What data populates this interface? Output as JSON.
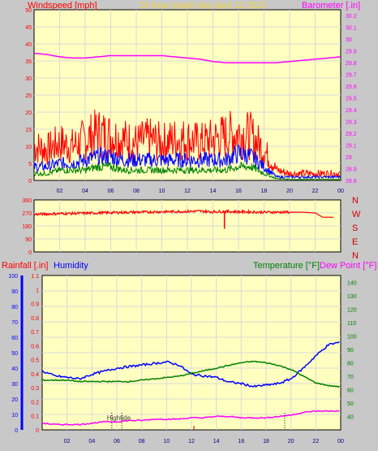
{
  "title": "24 hour graph day   April 12 2023",
  "colors": {
    "background": "#c8c8c8",
    "plot_bg": "#ffffc0",
    "grid": "#d9d9d9",
    "red": "#ff0000",
    "blue": "#0000ff",
    "green": "#008000",
    "magenta": "#ff00ff",
    "title": "#f0d040",
    "dark_red": "#cc0000"
  },
  "chart_data": [
    {
      "type": "line",
      "name": "wind-barometer",
      "left_label": "Windspeed [mph]",
      "right_label": "Barometer [.in]",
      "y_left": {
        "range": [
          0,
          50
        ],
        "ticks": [
          "0",
          "5",
          "10",
          "15",
          "20",
          "25",
          "30",
          "35",
          "40",
          "45",
          "50"
        ]
      },
      "y_right": {
        "range": [
          28.8,
          30.25
        ],
        "ticks": [
          "28.8",
          "28.9",
          "29",
          "29.1",
          "29.2",
          "29.3",
          "29.4",
          "29.5",
          "29.6",
          "29.7",
          "29.8",
          "29.9",
          "30",
          "30.1",
          "30.2"
        ]
      },
      "x_ticks": [
        "02",
        "04",
        "06",
        "08",
        "10",
        "12",
        "14",
        "16",
        "18",
        "20",
        "22",
        "00"
      ],
      "x_range": [
        0,
        24
      ],
      "series": [
        {
          "color": "red",
          "kind": "gust",
          "points": [
            [
              0,
              10
            ],
            [
              1,
              9
            ],
            [
              2,
              11
            ],
            [
              3,
              10
            ],
            [
              4,
              12
            ],
            [
              5,
              14
            ],
            [
              6,
              13
            ],
            [
              7,
              12
            ],
            [
              8,
              11
            ],
            [
              9,
              12
            ],
            [
              10,
              11
            ],
            [
              11,
              12
            ],
            [
              12,
              12
            ],
            [
              13,
              11
            ],
            [
              14,
              12
            ],
            [
              15,
              13
            ],
            [
              16,
              14
            ],
            [
              17,
              13
            ],
            [
              18,
              9
            ],
            [
              19,
              3
            ],
            [
              20,
              2
            ],
            [
              21,
              2
            ],
            [
              22,
              2
            ],
            [
              23,
              2
            ],
            [
              24,
              2
            ]
          ]
        },
        {
          "color": "blue",
          "kind": "avg",
          "points": [
            [
              0,
              4
            ],
            [
              1,
              4
            ],
            [
              2,
              5
            ],
            [
              3,
              5
            ],
            [
              4,
              6
            ],
            [
              5,
              7
            ],
            [
              6,
              7
            ],
            [
              7,
              6
            ],
            [
              8,
              6
            ],
            [
              9,
              6
            ],
            [
              10,
              6
            ],
            [
              11,
              6
            ],
            [
              12,
              6
            ],
            [
              13,
              6
            ],
            [
              14,
              6
            ],
            [
              15,
              6
            ],
            [
              16,
              8
            ],
            [
              17,
              7
            ],
            [
              18,
              4
            ],
            [
              19,
              1
            ],
            [
              20,
              1
            ],
            [
              21,
              1
            ],
            [
              22,
              1
            ],
            [
              23,
              1
            ],
            [
              24,
              1
            ]
          ]
        },
        {
          "color": "green",
          "kind": "min",
          "points": [
            [
              0,
              2
            ],
            [
              1,
              2
            ],
            [
              2,
              3
            ],
            [
              3,
              3
            ],
            [
              4,
              3
            ],
            [
              5,
              4
            ],
            [
              6,
              4
            ],
            [
              7,
              3
            ],
            [
              8,
              3
            ],
            [
              9,
              3
            ],
            [
              10,
              3
            ],
            [
              11,
              3
            ],
            [
              12,
              3
            ],
            [
              13,
              3
            ],
            [
              14,
              3
            ],
            [
              15,
              3
            ],
            [
              16,
              4
            ],
            [
              17,
              4
            ],
            [
              18,
              2
            ],
            [
              19,
              0.5
            ],
            [
              20,
              0.3
            ],
            [
              21,
              0.3
            ],
            [
              22,
              0.3
            ],
            [
              23,
              0.3
            ],
            [
              24,
              0.3
            ]
          ]
        },
        {
          "color": "magenta",
          "axis": "right",
          "points": [
            [
              0,
              29.88
            ],
            [
              1,
              29.87
            ],
            [
              2,
              29.85
            ],
            [
              3,
              29.84
            ],
            [
              4,
              29.84
            ],
            [
              5,
              29.85
            ],
            [
              6,
              29.86
            ],
            [
              7,
              29.86
            ],
            [
              8,
              29.86
            ],
            [
              9,
              29.86
            ],
            [
              10,
              29.86
            ],
            [
              11,
              29.85
            ],
            [
              12,
              29.84
            ],
            [
              13,
              29.83
            ],
            [
              14,
              29.81
            ],
            [
              15,
              29.8
            ],
            [
              16,
              29.8
            ],
            [
              17,
              29.8
            ],
            [
              18,
              29.8
            ],
            [
              19,
              29.8
            ],
            [
              20,
              29.81
            ],
            [
              21,
              29.82
            ],
            [
              22,
              29.83
            ],
            [
              23,
              29.84
            ],
            [
              24,
              29.85
            ]
          ]
        }
      ]
    },
    {
      "type": "line",
      "name": "wind-direction",
      "y_left": {
        "range": [
          0,
          360
        ],
        "ticks": [
          "0",
          "90",
          "180",
          "270",
          "360"
        ]
      },
      "right_labels": [
        "N",
        "W",
        "S",
        "E",
        "N"
      ],
      "x_range": [
        0,
        24
      ],
      "series": [
        {
          "color": "red",
          "points": [
            [
              0,
              260
            ],
            [
              2,
              265
            ],
            [
              4,
              268
            ],
            [
              6,
              272
            ],
            [
              8,
              275
            ],
            [
              10,
              278
            ],
            [
              12,
              280
            ],
            [
              13,
              282
            ],
            [
              14,
              278
            ],
            [
              15,
              280
            ],
            [
              16,
              278
            ],
            [
              18,
              275
            ],
            [
              20,
              275
            ],
            [
              21,
              275
            ],
            [
              22,
              270
            ],
            [
              22.6,
              240
            ],
            [
              23.5,
              240
            ]
          ]
        }
      ]
    },
    {
      "type": "line",
      "name": "rain-humidity-temperature",
      "left_label_rain": "Rainfall [.in]",
      "left_label_humidity": "Humidity",
      "right_label_temp": "Temperature [°F]",
      "right_label_dew": "Dew Point [°F]",
      "y_rain": {
        "range": [
          0,
          1.1
        ],
        "ticks": [
          "0",
          "0.1",
          "0.2",
          "0.3",
          "0.4",
          "0.5",
          "0.6",
          "0.7",
          "0.8",
          "0.9",
          "1",
          "1.1"
        ]
      },
      "y_humidity": {
        "range": [
          0,
          100
        ],
        "ticks": [
          "0",
          "10",
          "20",
          "30",
          "40",
          "50",
          "60",
          "70",
          "80",
          "90",
          "100"
        ]
      },
      "y_temp": {
        "range": [
          30,
          145
        ],
        "ticks": [
          "40",
          "50",
          "60",
          "70",
          "80",
          "90",
          "100",
          "110",
          "120",
          "130",
          "140"
        ]
      },
      "x_ticks": [
        "02",
        "04",
        "06",
        "08",
        "10",
        "12",
        "14",
        "16",
        "18",
        "20",
        "22",
        "00"
      ],
      "x_range": [
        0,
        24
      ],
      "annotation": "Hightide",
      "series": [
        {
          "color": "blue",
          "name": "humidity",
          "axis": "humidity",
          "points": [
            [
              0,
              38
            ],
            [
              1,
              35
            ],
            [
              2,
              34
            ],
            [
              3,
              33
            ],
            [
              4,
              36
            ],
            [
              5,
              38
            ],
            [
              6,
              40
            ],
            [
              7,
              41
            ],
            [
              8,
              42
            ],
            [
              9,
              43
            ],
            [
              10,
              44
            ],
            [
              11,
              42
            ],
            [
              12,
              36
            ],
            [
              13,
              35
            ],
            [
              14,
              34
            ],
            [
              15,
              31
            ],
            [
              16,
              30
            ],
            [
              17,
              28
            ],
            [
              18,
              29
            ],
            [
              19,
              30
            ],
            [
              20,
              33
            ],
            [
              21,
              40
            ],
            [
              22,
              48
            ],
            [
              23,
              55
            ],
            [
              24,
              57
            ]
          ]
        },
        {
          "color": "green",
          "name": "temperature",
          "axis": "temp",
          "points": [
            [
              0,
              67
            ],
            [
              1,
              67
            ],
            [
              2,
              67
            ],
            [
              3,
              66
            ],
            [
              4,
              66
            ],
            [
              5,
              66
            ],
            [
              6,
              66
            ],
            [
              7,
              66
            ],
            [
              8,
              67
            ],
            [
              9,
              68
            ],
            [
              10,
              69
            ],
            [
              11,
              70
            ],
            [
              12,
              72
            ],
            [
              13,
              74
            ],
            [
              14,
              76
            ],
            [
              15,
              78
            ],
            [
              16,
              80
            ],
            [
              17,
              81
            ],
            [
              18,
              80
            ],
            [
              19,
              78
            ],
            [
              20,
              75
            ],
            [
              21,
              70
            ],
            [
              22,
              65
            ],
            [
              23,
              63
            ],
            [
              24,
              62
            ]
          ]
        },
        {
          "color": "magenta",
          "name": "dew-point",
          "axis": "temp",
          "points": [
            [
              0,
              35
            ],
            [
              1,
              34
            ],
            [
              2,
              34
            ],
            [
              3,
              34
            ],
            [
              4,
              35
            ],
            [
              5,
              36
            ],
            [
              6,
              36
            ],
            [
              7,
              37
            ],
            [
              8,
              37
            ],
            [
              9,
              38
            ],
            [
              10,
              38
            ],
            [
              11,
              38
            ],
            [
              12,
              39
            ],
            [
              13,
              39
            ],
            [
              14,
              40
            ],
            [
              15,
              40
            ],
            [
              16,
              39
            ],
            [
              17,
              39
            ],
            [
              18,
              39
            ],
            [
              19,
              40
            ],
            [
              20,
              41
            ],
            [
              21,
              43
            ],
            [
              22,
              44
            ],
            [
              23,
              44
            ],
            [
              24,
              44
            ]
          ]
        }
      ]
    }
  ]
}
